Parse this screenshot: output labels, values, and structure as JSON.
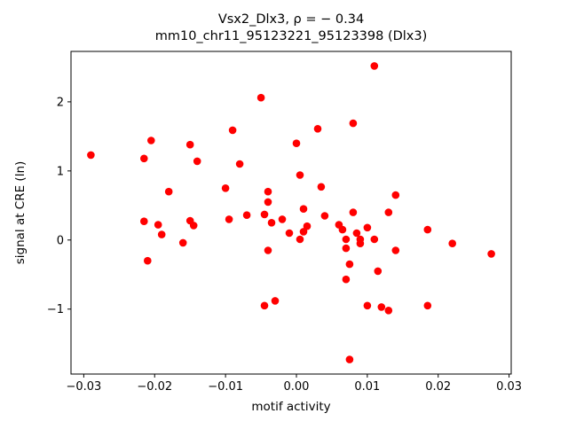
{
  "chart_data": {
    "type": "scatter",
    "title": "Vsx2_Dlx3, ρ = − 0.34",
    "subtitle": "mm10_chr11_95123221_95123398 (Dlx3)",
    "xlabel": "motif activity",
    "ylabel": "signal at CRE (ln)",
    "marker_color": "#ff0000",
    "marker_radius": 4.3,
    "xlim": [
      -0.0318,
      0.0303
    ],
    "ylim": [
      -1.94,
      2.73
    ],
    "grid": false,
    "legend": "none",
    "xticks": [
      {
        "v": -0.03,
        "label": "−0.03"
      },
      {
        "v": -0.02,
        "label": "−0.02"
      },
      {
        "v": -0.01,
        "label": "−0.01"
      },
      {
        "v": 0.0,
        "label": "0.00"
      },
      {
        "v": 0.01,
        "label": "0.01"
      },
      {
        "v": 0.02,
        "label": "0.02"
      },
      {
        "v": 0.03,
        "label": "0.03"
      }
    ],
    "yticks": [
      {
        "v": -1,
        "label": "−1"
      },
      {
        "v": 0,
        "label": "0"
      },
      {
        "v": 1,
        "label": "1"
      },
      {
        "v": 2,
        "label": "2"
      }
    ],
    "points": [
      [
        -0.029,
        1.23
      ],
      [
        -0.0215,
        1.18
      ],
      [
        -0.0205,
        1.44
      ],
      [
        -0.0215,
        0.27
      ],
      [
        -0.021,
        -0.3
      ],
      [
        -0.0195,
        0.22
      ],
      [
        -0.019,
        0.08
      ],
      [
        -0.018,
        0.7
      ],
      [
        -0.016,
        -0.04
      ],
      [
        -0.015,
        1.38
      ],
      [
        -0.015,
        0.28
      ],
      [
        -0.014,
        1.14
      ],
      [
        -0.0145,
        0.21
      ],
      [
        -0.01,
        0.75
      ],
      [
        -0.009,
        1.59
      ],
      [
        -0.0095,
        0.3
      ],
      [
        -0.008,
        1.1
      ],
      [
        -0.007,
        0.36
      ],
      [
        -0.005,
        2.06
      ],
      [
        -0.0045,
        0.37
      ],
      [
        -0.004,
        0.7
      ],
      [
        -0.004,
        0.55
      ],
      [
        -0.0035,
        0.25
      ],
      [
        -0.004,
        -0.15
      ],
      [
        -0.0045,
        -0.95
      ],
      [
        -0.003,
        -0.88
      ],
      [
        -0.002,
        0.3
      ],
      [
        -0.001,
        0.1
      ],
      [
        0.0,
        1.4
      ],
      [
        0.0005,
        0.94
      ],
      [
        0.001,
        0.45
      ],
      [
        0.0015,
        0.2
      ],
      [
        0.001,
        0.12
      ],
      [
        0.0005,
        0.01
      ],
      [
        0.003,
        1.61
      ],
      [
        0.0035,
        0.77
      ],
      [
        0.004,
        0.35
      ],
      [
        0.006,
        0.22
      ],
      [
        0.0065,
        0.15
      ],
      [
        0.007,
        0.01
      ],
      [
        0.007,
        -0.12
      ],
      [
        0.0075,
        -0.35
      ],
      [
        0.007,
        -0.57
      ],
      [
        0.008,
        1.69
      ],
      [
        0.008,
        0.4
      ],
      [
        0.0085,
        0.1
      ],
      [
        0.009,
        0.01
      ],
      [
        0.009,
        -0.05
      ],
      [
        0.01,
        0.18
      ],
      [
        0.01,
        -0.95
      ],
      [
        0.011,
        2.52
      ],
      [
        0.011,
        0.01
      ],
      [
        0.0115,
        -0.45
      ],
      [
        0.012,
        -0.97
      ],
      [
        0.013,
        -1.02
      ],
      [
        0.013,
        0.4
      ],
      [
        0.014,
        0.65
      ],
      [
        0.014,
        -0.15
      ],
      [
        0.0185,
        0.15
      ],
      [
        0.0185,
        -0.95
      ],
      [
        0.022,
        -0.05
      ],
      [
        0.0275,
        -0.2
      ],
      [
        0.0075,
        -1.73
      ]
    ]
  }
}
